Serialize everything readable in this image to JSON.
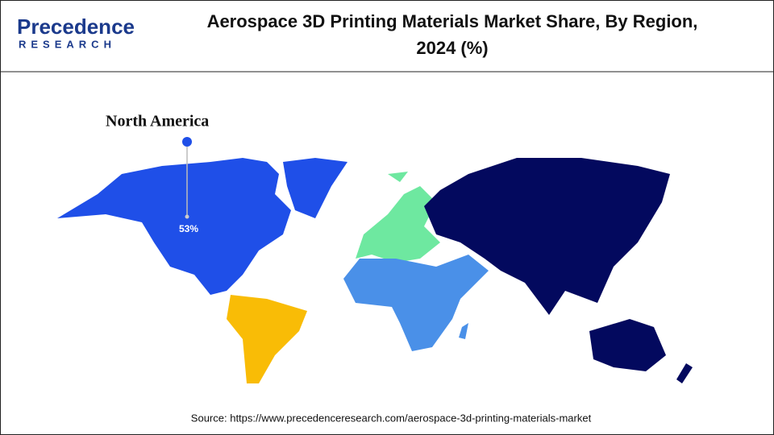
{
  "header": {
    "logo": {
      "name": "Precedence",
      "tagline": "RESEARCH"
    },
    "title": [
      "Aerospace 3D Printing Materials Market Share, By Region,",
      "2024 (%)"
    ]
  },
  "map": {
    "callout": {
      "region": "North America",
      "value": "53%"
    }
  },
  "footer": {
    "source": "Source: https://www.precedenceresearch.com/aerospace-3d-printing-materials-market"
  }
}
